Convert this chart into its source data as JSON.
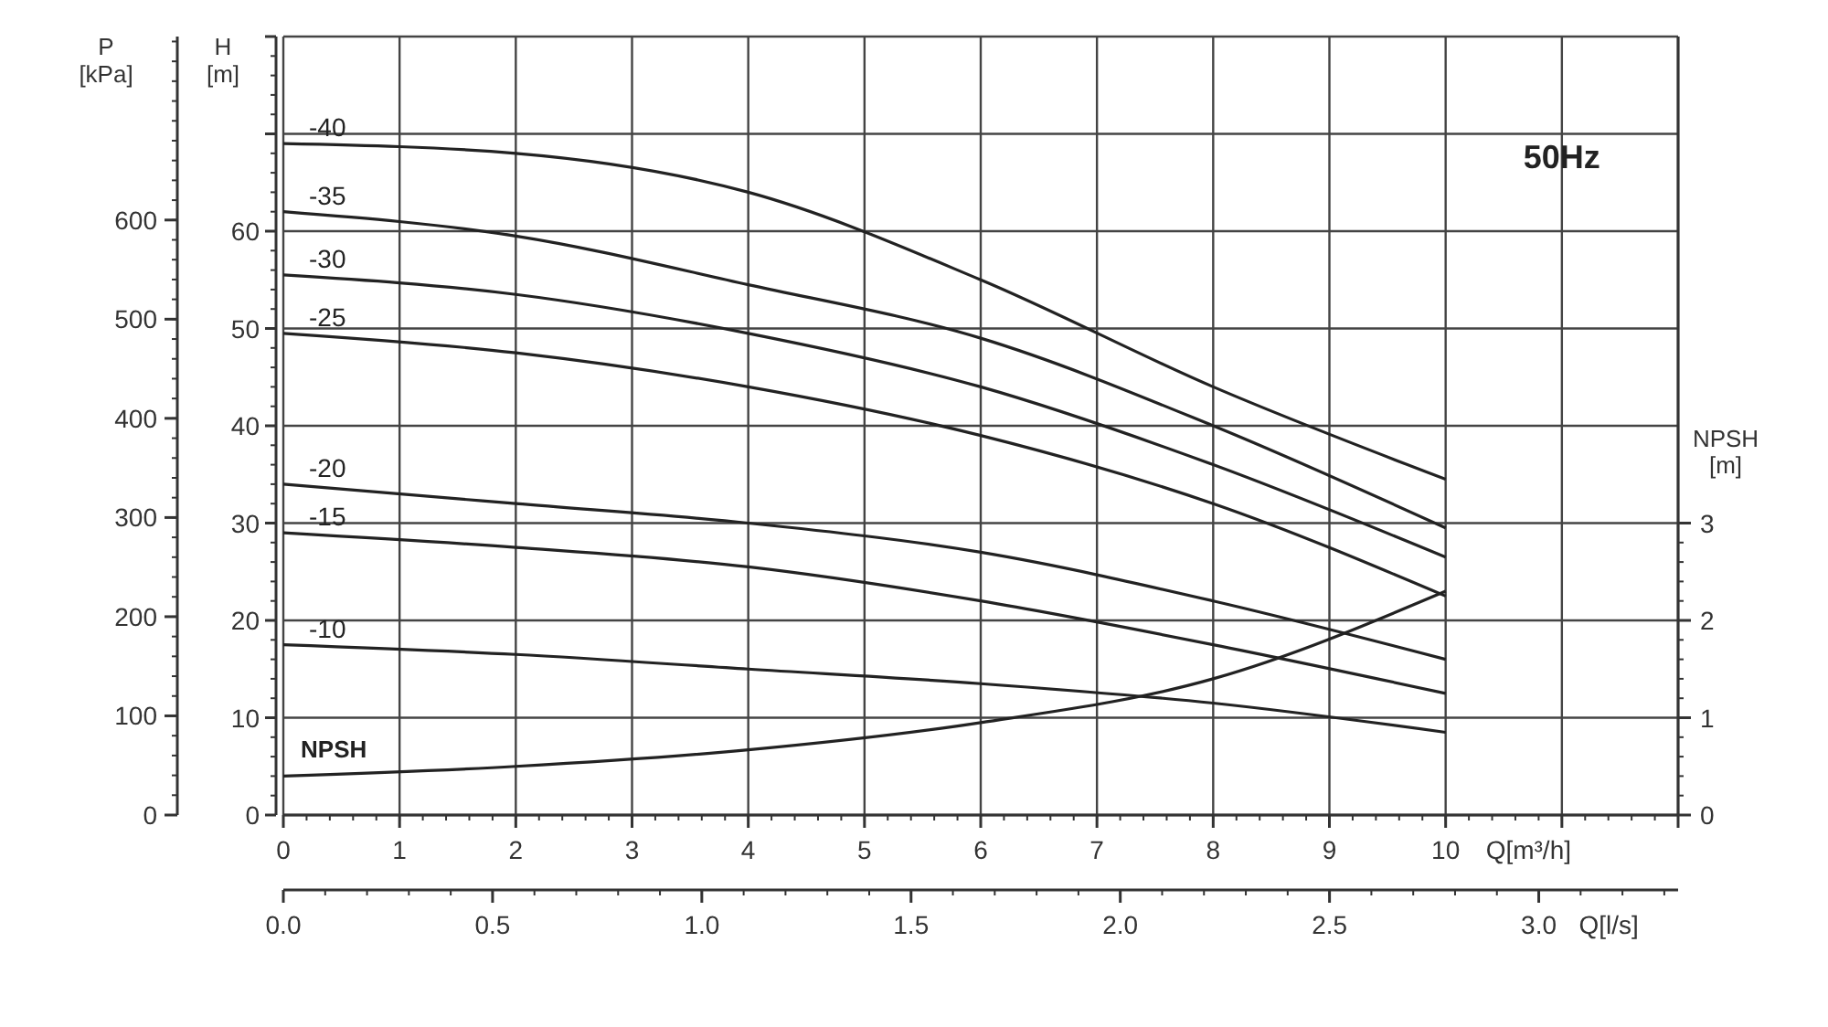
{
  "chart_data": {
    "type": "line",
    "title": "50Hz",
    "xlabel": "Q[m³/h]",
    "ylabel": "H\n[m]",
    "y2label": "P\n[kPa]",
    "y3label": "NPSH\n[m]",
    "x2label": "Q[l/s]",
    "x": [
      0,
      2,
      4,
      6,
      8,
      10
    ],
    "xlim": [
      0,
      12
    ],
    "xticks": [
      0,
      1,
      2,
      3,
      4,
      5,
      6,
      7,
      8,
      9,
      10,
      {
        "value": 11,
        "label": null
      },
      {
        "value": 12,
        "label": null
      }
    ],
    "x2lim": [
      0,
      3.333
    ],
    "x2ticks": [
      {
        "value": 0,
        "label": "0.0"
      },
      {
        "value": 0.5,
        "label": "0.5"
      },
      {
        "value": 1,
        "label": "1.0"
      },
      {
        "value": 1.5,
        "label": "1.5"
      },
      {
        "value": 2,
        "label": "2.0"
      },
      {
        "value": 2.5,
        "label": "2.5"
      },
      {
        "value": 3,
        "label": "3.0"
      }
    ],
    "ylim": [
      0,
      80
    ],
    "yticks": [
      0,
      10,
      20,
      30,
      40,
      50,
      60,
      {
        "value": 70,
        "label": null
      },
      {
        "value": 80,
        "label": null
      }
    ],
    "y2lim": [
      0,
      785
    ],
    "y2ticks": [
      0,
      100,
      200,
      300,
      400,
      500,
      600
    ],
    "y3lim": [
      0,
      8
    ],
    "y3ticks": [
      0,
      1,
      2,
      3
    ],
    "grid": true,
    "marker": "none",
    "line_style": "solid",
    "series": [
      {
        "name": "-40",
        "color": "#222222",
        "values": [
          69,
          68,
          64,
          55,
          44,
          34.5
        ]
      },
      {
        "name": "-35",
        "color": "#222222",
        "values": [
          62,
          59.5,
          54.5,
          49,
          40,
          29.5
        ]
      },
      {
        "name": "-30",
        "color": "#222222",
        "values": [
          55.5,
          53.5,
          49.5,
          44,
          36,
          26.5
        ]
      },
      {
        "name": "-25",
        "color": "#222222",
        "values": [
          49.5,
          47.5,
          44,
          39,
          32,
          22.5
        ]
      },
      {
        "name": "-20",
        "color": "#222222",
        "values": [
          34,
          32,
          30,
          27,
          22,
          16
        ]
      },
      {
        "name": "-15",
        "color": "#222222",
        "values": [
          29,
          27.5,
          25.5,
          22,
          17.5,
          12.5
        ]
      },
      {
        "name": "-10",
        "color": "#222222",
        "values": [
          17.5,
          16.5,
          15,
          13.5,
          11.5,
          8.5
        ]
      },
      {
        "name": "NPSH",
        "color": "#222222",
        "axis": "y3",
        "values": [
          0.4,
          0.5,
          0.67,
          0.95,
          1.4,
          2.3
        ]
      }
    ]
  }
}
